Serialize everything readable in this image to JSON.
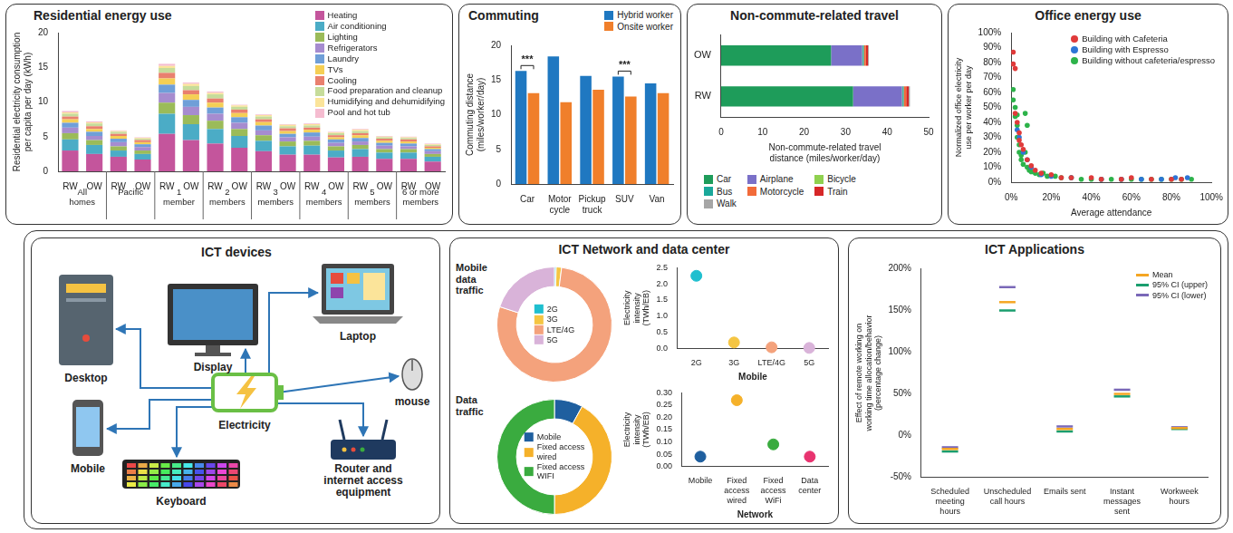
{
  "chart_data": [
    {
      "type": "bar",
      "title": "Residential energy use",
      "stacked": true,
      "grid": false,
      "legend": "upper right",
      "ylabel": "Residential electricity consumption per capita per day (kWh)",
      "categories": [
        "RW",
        "OW",
        "RW",
        "OW",
        "RW",
        "OW",
        "RW",
        "OW",
        "RW",
        "OW",
        "RW",
        "OW",
        "RW",
        "OW",
        "RW",
        "OW"
      ],
      "groups": [
        "All homes",
        "Pacific",
        "1 member",
        "2 members",
        "3 members",
        "4 members",
        "5 members",
        "6 or more members"
      ],
      "ylim": [
        0,
        20
      ],
      "yticks": [
        0,
        5,
        10,
        15,
        20
      ],
      "series": [
        {
          "name": "Heating",
          "color": "#c4559c",
          "values": [
            3.0,
            2.5,
            2.1,
            1.7,
            5.4,
            4.5,
            4.0,
            3.4,
            2.9,
            2.4,
            2.4,
            2.0,
            2.1,
            1.8,
            1.8,
            1.4
          ]
        },
        {
          "name": "Air conditioning",
          "color": "#4bacc6",
          "values": [
            1.6,
            1.3,
            0.9,
            0.8,
            2.9,
            2.3,
            2.1,
            1.7,
            1.5,
            1.2,
            1.3,
            1.0,
            1.1,
            0.9,
            0.9,
            0.7
          ]
        },
        {
          "name": "Lighting",
          "color": "#9bbb59",
          "values": [
            0.9,
            0.7,
            0.6,
            0.5,
            1.6,
            1.3,
            1.2,
            1.0,
            0.8,
            0.7,
            0.7,
            0.6,
            0.6,
            0.5,
            0.5,
            0.4
          ]
        },
        {
          "name": "Refrigerators",
          "color": "#a68ccf",
          "values": [
            0.8,
            0.6,
            0.6,
            0.5,
            1.4,
            1.2,
            1.0,
            0.9,
            0.7,
            0.6,
            0.6,
            0.5,
            0.5,
            0.5,
            0.4,
            0.4
          ]
        },
        {
          "name": "Laundry",
          "color": "#6f9fd8",
          "values": [
            0.7,
            0.6,
            0.5,
            0.4,
            1.2,
            1.0,
            0.9,
            0.8,
            0.7,
            0.5,
            0.6,
            0.5,
            0.5,
            0.4,
            0.4,
            0.3
          ]
        },
        {
          "name": "TVs",
          "color": "#f5cf55",
          "values": [
            0.5,
            0.4,
            0.4,
            0.3,
            0.9,
            0.8,
            0.7,
            0.6,
            0.5,
            0.4,
            0.4,
            0.3,
            0.4,
            0.3,
            0.3,
            0.2
          ]
        },
        {
          "name": "Cooling",
          "color": "#e9806e",
          "values": [
            0.4,
            0.4,
            0.3,
            0.3,
            0.8,
            0.6,
            0.6,
            0.5,
            0.4,
            0.4,
            0.3,
            0.3,
            0.3,
            0.3,
            0.3,
            0.2
          ]
        },
        {
          "name": "Food preparation and cleanup",
          "color": "#c6dc9a",
          "values": [
            0.4,
            0.4,
            0.3,
            0.2,
            0.7,
            0.6,
            0.6,
            0.4,
            0.4,
            0.3,
            0.3,
            0.3,
            0.3,
            0.2,
            0.2,
            0.2
          ]
        },
        {
          "name": "Humidifying and dehumidifying",
          "color": "#fbe49a",
          "values": [
            0.2,
            0.15,
            0.1,
            0.1,
            0.3,
            0.3,
            0.2,
            0.2,
            0.2,
            0.2,
            0.2,
            0.1,
            0.2,
            0.1,
            0.1,
            0.1
          ]
        },
        {
          "name": "Pool and hot tub",
          "color": "#f5bcd0",
          "values": [
            0.2,
            0.15,
            0.1,
            0.1,
            0.3,
            0.2,
            0.2,
            0.1,
            0.1,
            0.1,
            0.1,
            0.1,
            0.1,
            0.1,
            0.1,
            0.1
          ]
        }
      ]
    },
    {
      "type": "bar",
      "title": "Commuting",
      "grid": false,
      "legend": "upper right",
      "ylabel": "Commuting distance (miles/worker/day)",
      "categories": [
        "Car",
        "Motor cycle",
        "Pickup truck",
        "SUV",
        "Van"
      ],
      "ylim": [
        0,
        20
      ],
      "yticks": [
        0,
        5,
        10,
        15,
        20
      ],
      "series": [
        {
          "name": "Hybrid worker",
          "color": "#1f78c1",
          "values": [
            16.3,
            18.4,
            15.6,
            15.5,
            14.5
          ]
        },
        {
          "name": "Onsite worker",
          "color": "#f07f2b",
          "values": [
            13.1,
            11.8,
            13.6,
            12.6,
            13.1
          ]
        }
      ],
      "annotations": [
        {
          "text": "***",
          "category": "Car"
        },
        {
          "text": "***",
          "category": "SUV"
        }
      ]
    },
    {
      "type": "bar",
      "orientation": "horizontal",
      "stacked": true,
      "title": "Non-commute-related travel",
      "grid": false,
      "legend": "bottom",
      "xlabel": "Non-commute-related travel distance (miles/worker/day)",
      "categories": [
        "OW",
        "RW"
      ],
      "xlim": [
        0,
        50
      ],
      "xticks": [
        0,
        10,
        20,
        30,
        40,
        50
      ],
      "series": [
        {
          "name": "Car",
          "color": "#1e9c5a",
          "values": [
            26.5,
            31.8
          ]
        },
        {
          "name": "Airplane",
          "color": "#7a70c8",
          "values": [
            7.5,
            11.8
          ]
        },
        {
          "name": "Bicycle",
          "color": "#8fd14f",
          "values": [
            0.1,
            0.1
          ]
        },
        {
          "name": "Bus",
          "color": "#1aa89a",
          "values": [
            0.3,
            0.3
          ]
        },
        {
          "name": "Motorcycle",
          "color": "#f26b3a",
          "values": [
            0.5,
            0.6
          ]
        },
        {
          "name": "Train",
          "color": "#d62728",
          "values": [
            0.5,
            0.6
          ]
        },
        {
          "name": "Walk",
          "color": "#a6a6a6",
          "values": [
            0.2,
            0.3
          ]
        }
      ]
    },
    {
      "type": "scatter",
      "title": "Office energy use",
      "grid": false,
      "legend": "upper right",
      "marker": "circle",
      "xlabel": "Average attendance",
      "ylabel": "Normalized office electricity use per worker per day",
      "xlim": [
        0,
        100
      ],
      "xticks": [
        {
          "value": 0,
          "label": "0%"
        },
        {
          "value": 20,
          "label": "20%"
        },
        {
          "value": 40,
          "label": "40%"
        },
        {
          "value": 60,
          "label": "60%"
        },
        {
          "value": 80,
          "label": "80%"
        },
        {
          "value": 100,
          "label": "100%"
        }
      ],
      "ylim": [
        0,
        100
      ],
      "yticks": [
        {
          "value": 0,
          "label": "0%"
        },
        {
          "value": 10,
          "label": "10%"
        },
        {
          "value": 20,
          "label": "20%"
        },
        {
          "value": 30,
          "label": "30%"
        },
        {
          "value": 40,
          "label": "40%"
        },
        {
          "value": 50,
          "label": "50%"
        },
        {
          "value": 60,
          "label": "60%"
        },
        {
          "value": 70,
          "label": "70%"
        },
        {
          "value": 80,
          "label": "80%"
        },
        {
          "value": 90,
          "label": "90%"
        },
        {
          "value": 100,
          "label": "100%"
        }
      ],
      "series": [
        {
          "name": "Building with Cafeteria",
          "color": "#e03a3a",
          "x": [
            1,
            1,
            2,
            2,
            3,
            4,
            4,
            5,
            6,
            8,
            10,
            12,
            15,
            20,
            25,
            30,
            40,
            45,
            55,
            60,
            70,
            80,
            85
          ],
          "values": [
            87,
            79,
            76,
            46,
            40,
            33,
            28,
            25,
            22,
            15,
            11,
            8,
            6,
            5,
            3,
            3,
            3,
            2,
            2,
            3,
            2,
            2,
            2
          ]
        },
        {
          "name": "Building with Espresso",
          "color": "#2e75d6",
          "x": [
            3,
            4,
            6,
            8,
            10,
            15,
            20,
            30,
            45,
            55,
            65,
            75,
            82,
            88
          ],
          "values": [
            35,
            30,
            20,
            15,
            10,
            5,
            4,
            3,
            2,
            2,
            2,
            2,
            3,
            3
          ]
        },
        {
          "name": "Building without cafeteria/espresso",
          "color": "#2db34a",
          "x": [
            1,
            1,
            2,
            2,
            3,
            3,
            3,
            4,
            4,
            5,
            5,
            6,
            7,
            8,
            9,
            10,
            12,
            14,
            16,
            18,
            22,
            25,
            30,
            35,
            40,
            45,
            50,
            55,
            60,
            65,
            70,
            75,
            80,
            85,
            90,
            7,
            8
          ],
          "values": [
            62,
            55,
            50,
            44,
            45,
            38,
            30,
            25,
            20,
            18,
            15,
            12,
            20,
            10,
            8,
            7,
            6,
            5,
            6,
            4,
            4,
            3,
            3,
            2,
            2,
            2,
            2,
            2,
            2,
            2,
            2,
            2,
            2,
            2,
            2,
            46,
            38
          ]
        }
      ]
    },
    {
      "type": "doughnut",
      "title": "Mobile data traffic",
      "legend": "center",
      "categories": [
        "2G",
        "3G",
        "LTE/4G",
        "5G"
      ],
      "values": [
        0.5,
        1.5,
        78,
        20
      ],
      "colors": [
        "#1fbfcf",
        "#f5c542",
        "#f4a27c",
        "#d9b3d9"
      ]
    },
    {
      "type": "doughnut",
      "title": "Data traffic",
      "legend": "center",
      "categories": [
        "Mobile",
        "Fixed access wired",
        "Fixed access WIFI"
      ],
      "values": [
        8,
        42,
        50
      ],
      "colors": [
        "#1f5f9f",
        "#f5b12a",
        "#3aab3f"
      ]
    },
    {
      "type": "scatter",
      "grid": false,
      "marker": "circle",
      "ylabel": "Electricity intensity (TWh/EB)",
      "xlabel": "Mobile",
      "categories": [
        "2G",
        "3G",
        "LTE/4G",
        "5G"
      ],
      "values": [
        2.25,
        0.18,
        0.03,
        0.01
      ],
      "colors": [
        "#1fbfcf",
        "#f5c542",
        "#f4a27c",
        "#d9b3d9"
      ],
      "ylim": [
        0,
        2.5
      ],
      "yticks": [
        {
          "value": 0,
          "label": "0.0"
        },
        0.5,
        {
          "value": 1,
          "label": "1.0"
        },
        1.5,
        {
          "value": 2,
          "label": "2.0"
        },
        2.5
      ]
    },
    {
      "type": "scatter",
      "grid": false,
      "marker": "circle",
      "ylabel": "Electricity intensity (TWh/EB)",
      "xlabel": "Network",
      "categories": [
        "Mobile",
        "Fixed access wired",
        "Fixed access WiFi",
        "Data center"
      ],
      "values": [
        0.04,
        0.27,
        0.09,
        0.04
      ],
      "colors": [
        "#1f5f9f",
        "#f5b12a",
        "#3aab3f",
        "#e8336f"
      ],
      "ylim": [
        0,
        0.3
      ],
      "yticks": [
        {
          "value": 0,
          "label": "0.00"
        },
        0.05,
        {
          "value": 0.1,
          "label": "0.10"
        },
        0.15,
        {
          "value": 0.2,
          "label": "0.20"
        },
        0.25,
        {
          "value": 0.3,
          "label": "0.30"
        }
      ]
    },
    {
      "type": "scatter",
      "title": "ICT Applications",
      "grid": false,
      "legend": "upper right",
      "ylabel": "Effect of remote working on working time allocation/behavior (percentage change)",
      "categories": [
        "Scheduled meeting hours",
        "Unscheduled call hours",
        "Emails sent",
        "Instant messages sent",
        "Workweek hours"
      ],
      "ylim": [
        -50,
        200
      ],
      "yticks": [
        {
          "value": -50,
          "label": "-50%"
        },
        {
          "value": 0,
          "label": "0%"
        },
        {
          "value": 50,
          "label": "50%"
        },
        {
          "value": 100,
          "label": "100%"
        },
        {
          "value": 150,
          "label": "150%"
        },
        {
          "value": 200,
          "label": "200%"
        }
      ],
      "series": [
        {
          "name": "Mean",
          "color": "#f5a623",
          "marker": "dash",
          "values": [
            -16,
            160,
            8,
            50,
            9
          ]
        },
        {
          "name": "95% CI (upper)",
          "color": "#1a9e6e",
          "marker": "dash",
          "values": [
            -19,
            150,
            5,
            47,
            8
          ]
        },
        {
          "name": "95% CI (lower)",
          "color": "#7a68b8",
          "marker": "dash",
          "values": [
            -14,
            178,
            11,
            55,
            10
          ]
        }
      ]
    }
  ],
  "section_title": "ICT Network and data center",
  "diagram": {
    "title": "ICT devices",
    "center": "Electricity",
    "nodes": [
      "Desktop",
      "Display",
      "Laptop",
      "mouse",
      "Mobile",
      "Keyboard",
      "Router and internet access equipment"
    ]
  }
}
